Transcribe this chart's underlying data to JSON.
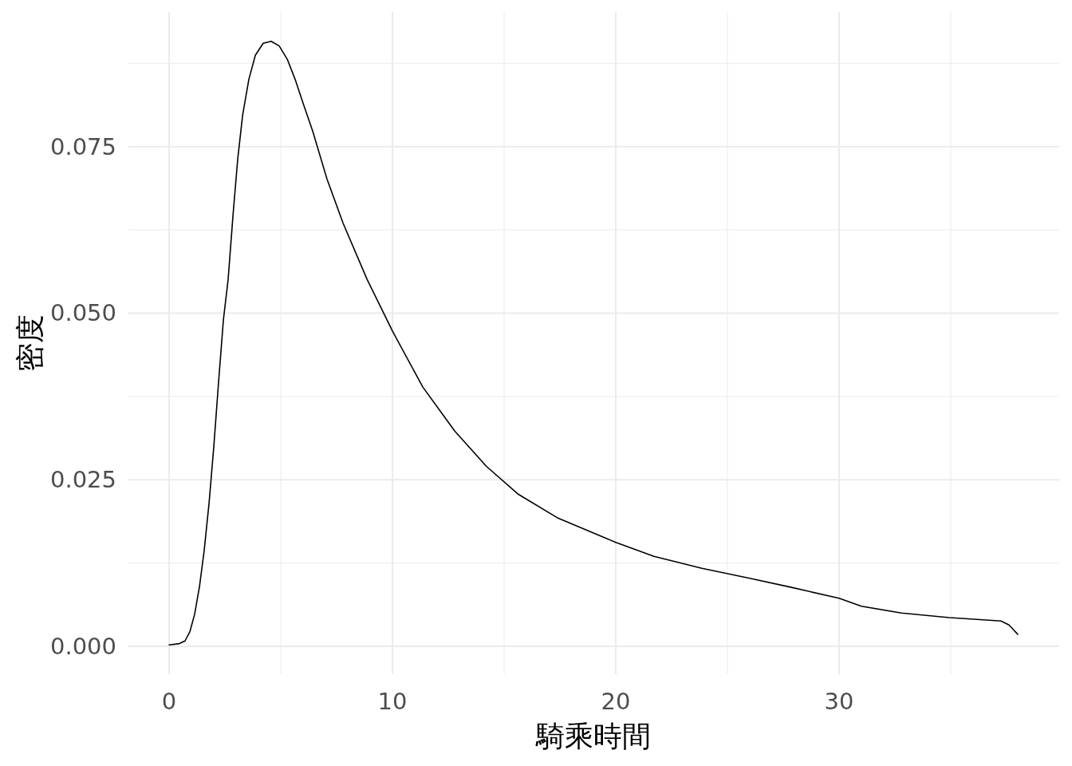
{
  "chart_data": {
    "type": "line",
    "xlabel": "騎乘時間",
    "ylabel": "密度",
    "xlim": [
      -1.86,
      39.86
    ],
    "ylim": [
      -0.0042,
      0.0952
    ],
    "xticks": [
      0,
      {
        "value": 5,
        "label": null
      },
      10,
      {
        "value": 15,
        "label": null
      },
      20,
      {
        "value": 25,
        "label": null
      },
      30,
      {
        "value": 35,
        "label": null
      }
    ],
    "yticks": [
      "0.000",
      {
        "value": 0.0125,
        "label": null
      },
      {
        "value": 0.025,
        "label": "0.025"
      },
      {
        "value": 0.0375,
        "label": null
      },
      {
        "value": 0.05,
        "label": "0.050"
      },
      {
        "value": 0.0625,
        "label": null
      },
      {
        "value": 0.075,
        "label": "0.075"
      },
      {
        "value": 0.0875,
        "label": null
      }
    ],
    "grid": true,
    "marker": "none",
    "line_style": "solid",
    "series": [
      {
        "color": "#000000",
        "x": [
          0,
          0.46,
          0.71,
          0.93,
          1.14,
          1.36,
          1.57,
          1.79,
          2.0,
          2.21,
          2.43,
          2.64,
          2.86,
          3.07,
          3.29,
          3.57,
          3.86,
          4.21,
          4.57,
          4.93,
          5.29,
          5.64,
          6.0,
          6.43,
          7.07,
          7.79,
          8.86,
          10,
          11.36,
          12.79,
          14.21,
          15.64,
          17.43,
          20,
          21.71,
          23.86,
          26,
          27.79,
          30,
          31,
          32.79,
          34.93,
          37.25,
          37.61,
          38
        ],
        "values": [
          0.0002,
          0.0004,
          0.0008,
          0.0022,
          0.0048,
          0.009,
          0.0144,
          0.0216,
          0.03,
          0.0395,
          0.049,
          0.055,
          0.0647,
          0.0731,
          0.0797,
          0.0851,
          0.0887,
          0.0905,
          0.0908,
          0.0901,
          0.0881,
          0.0851,
          0.0815,
          0.0773,
          0.0701,
          0.0635,
          0.0551,
          0.0473,
          0.0389,
          0.0323,
          0.027,
          0.0228,
          0.0192,
          0.0156,
          0.0135,
          0.0117,
          0.0102,
          0.0089,
          0.0072,
          0.006,
          0.005,
          0.0043,
          0.0038,
          0.0032,
          0.0018
        ]
      }
    ]
  }
}
